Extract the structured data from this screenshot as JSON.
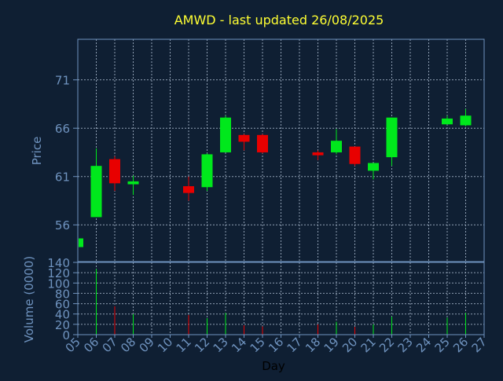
{
  "colors": {
    "background": "#0f1f33",
    "title": "#ffff33",
    "axis_text": "#6f93bf",
    "axis_line": "#6f93bf",
    "grid": "#8f9fb3",
    "up": "#00e81c",
    "down": "#e80000",
    "day_label": "#000000"
  },
  "chart_data": {
    "type": "candlestick",
    "title": "AMWD - last updated 26/08/2025",
    "xlabel": "Day",
    "price_panel": {
      "ylabel": "Price",
      "ylim": [
        52.2,
        75.2
      ],
      "yticks": [
        56,
        61,
        66,
        71
      ]
    },
    "volume_panel": {
      "ylabel": "Volume (0000)",
      "ylim": [
        0,
        140
      ],
      "yticks": [
        0,
        20,
        40,
        60,
        80,
        100,
        120,
        140
      ]
    },
    "x_tick_labels": [
      "05",
      "06",
      "07",
      "08",
      "09",
      "10",
      "11",
      "12",
      "13",
      "14",
      "15",
      "16",
      "17",
      "18",
      "19",
      "20",
      "21",
      "22",
      "23",
      "24",
      "25",
      "26",
      "27"
    ],
    "grid": true,
    "candles": [
      {
        "day": "05",
        "open": 53.7,
        "high": 54.6,
        "low": 53.7,
        "close": 54.6,
        "volume": 2
      },
      {
        "day": "06",
        "open": 56.8,
        "high": 63.9,
        "low": 56.8,
        "close": 62.1,
        "volume": 127
      },
      {
        "day": "07",
        "open": 62.8,
        "high": 63.1,
        "low": 59.5,
        "close": 60.3,
        "volume": 55
      },
      {
        "day": "08",
        "open": 60.2,
        "high": 61.1,
        "low": 59.1,
        "close": 60.5,
        "volume": 40
      },
      {
        "day": "11",
        "open": 60.0,
        "high": 61.0,
        "low": 58.5,
        "close": 59.3,
        "volume": 38
      },
      {
        "day": "12",
        "open": 59.9,
        "high": 63.4,
        "low": 59.5,
        "close": 63.3,
        "volume": 32
      },
      {
        "day": "13",
        "open": 63.5,
        "high": 67.3,
        "low": 63.5,
        "close": 67.1,
        "volume": 42
      },
      {
        "day": "14",
        "open": 65.3,
        "high": 65.4,
        "low": 63.7,
        "close": 64.6,
        "volume": 18
      },
      {
        "day": "15",
        "open": 65.3,
        "high": 65.4,
        "low": 63.4,
        "close": 63.5,
        "volume": 16
      },
      {
        "day": "18",
        "open": 63.5,
        "high": 63.7,
        "low": 62.7,
        "close": 63.2,
        "volume": 20
      },
      {
        "day": "19",
        "open": 63.5,
        "high": 65.9,
        "low": 63.3,
        "close": 64.7,
        "volume": 25
      },
      {
        "day": "20",
        "open": 64.1,
        "high": 64.1,
        "low": 62.1,
        "close": 62.3,
        "volume": 15
      },
      {
        "day": "21",
        "open": 61.6,
        "high": 62.4,
        "low": 60.7,
        "close": 62.4,
        "volume": 20
      },
      {
        "day": "22",
        "open": 63.0,
        "high": 67.1,
        "low": 62.1,
        "close": 67.1,
        "volume": 35
      },
      {
        "day": "25",
        "open": 66.4,
        "high": 67.3,
        "low": 66.4,
        "close": 67.0,
        "volume": 33
      },
      {
        "day": "26",
        "open": 66.3,
        "high": 68.0,
        "low": 66.2,
        "close": 67.3,
        "volume": 42
      }
    ]
  }
}
